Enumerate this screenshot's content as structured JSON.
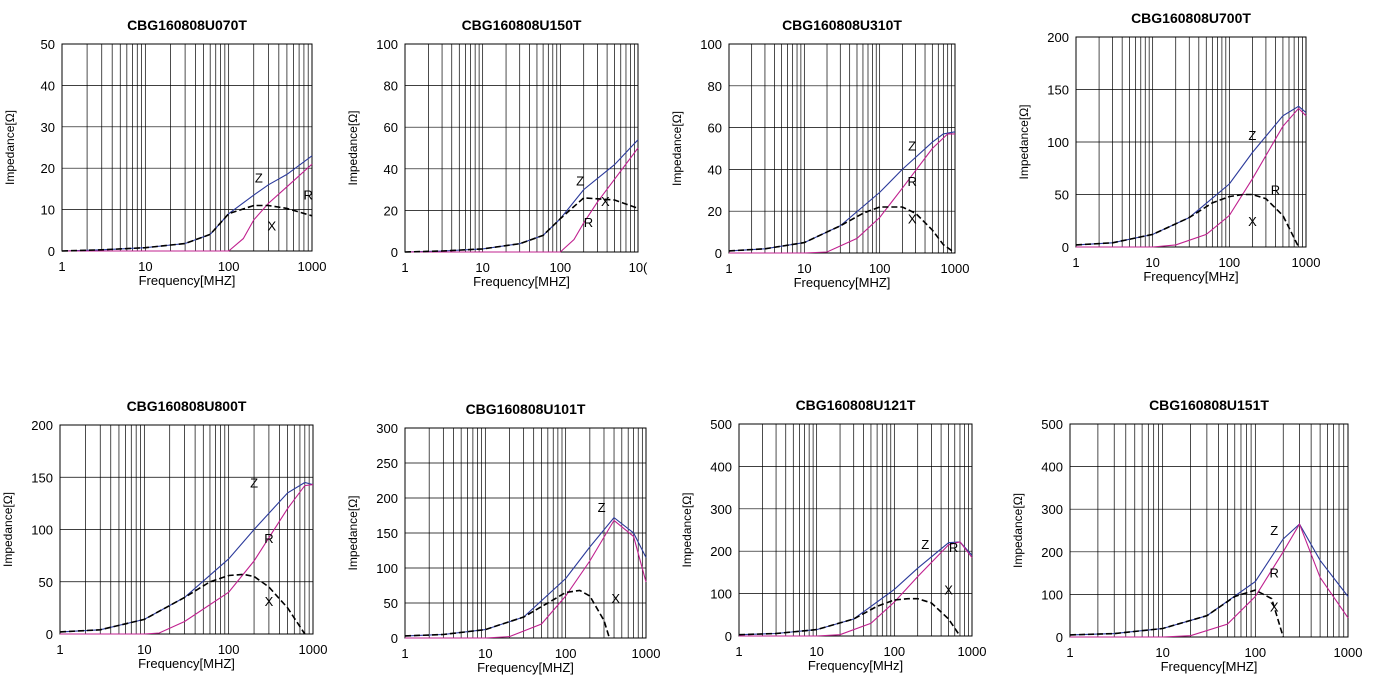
{
  "colors": {
    "Z": "#2b3a9b",
    "R": "#c0208f",
    "X": "#000000",
    "grid": "#000000"
  },
  "chart_data": [
    {
      "type": "line",
      "title": "CBG160808U070T",
      "xlabel": "Frequency[MHZ]",
      "ylabel": "Impedance[Ω]",
      "xscale": "log",
      "xlim": [
        1,
        1000
      ],
      "ylim": [
        0,
        50
      ],
      "yticks": [
        0,
        10,
        20,
        30,
        40,
        50
      ],
      "xticks": [
        {
          "v": 1,
          "l": "1"
        },
        {
          "v": 10,
          "l": "10"
        },
        {
          "v": 100,
          "l": "100"
        },
        {
          "v": 1000,
          "l": "1000"
        }
      ],
      "grid": true,
      "series": [
        {
          "name": "Z",
          "x": [
            1,
            3,
            10,
            30,
            60,
            100,
            200,
            300,
            500,
            1000
          ],
          "y": [
            0,
            0.3,
            0.8,
            1.8,
            4,
            9,
            13.5,
            16,
            18.5,
            23
          ]
        },
        {
          "name": "R",
          "x": [
            1,
            10,
            60,
            100,
            150,
            200,
            300,
            500,
            1000
          ],
          "y": [
            0,
            0,
            0,
            0,
            3,
            7.5,
            11.5,
            15.5,
            21
          ]
        },
        {
          "name": "X",
          "x": [
            1,
            3,
            10,
            30,
            60,
            100,
            200,
            300,
            500,
            1000
          ],
          "y": [
            0,
            0.3,
            0.8,
            1.8,
            4,
            9,
            11,
            11,
            10.3,
            8.5
          ]
        }
      ],
      "annotations": [
        {
          "text": "Z",
          "x": 230,
          "y": 16.5
        },
        {
          "text": "R",
          "x": 900,
          "y": 12.5
        },
        {
          "text": "X",
          "x": 330,
          "y": 5
        }
      ]
    },
    {
      "type": "line",
      "title": "CBG160808U150T",
      "xlabel": "Frequency[MHZ]",
      "ylabel": "Impedance[Ω]",
      "xscale": "log",
      "xlim": [
        1,
        1000
      ],
      "ylim": [
        0,
        100
      ],
      "yticks": [
        0,
        20,
        40,
        60,
        80,
        100
      ],
      "xticks": [
        {
          "v": 1,
          "l": "1"
        },
        {
          "v": 10,
          "l": "10"
        },
        {
          "v": 100,
          "l": "100"
        },
        {
          "v": 1000,
          "l": "10("
        }
      ],
      "grid": true,
      "series": [
        {
          "name": "Z",
          "x": [
            1,
            3,
            10,
            30,
            60,
            100,
            200,
            500,
            1000
          ],
          "y": [
            0,
            0.5,
            1.5,
            4,
            8,
            16,
            30,
            42,
            54
          ]
        },
        {
          "name": "R",
          "x": [
            1,
            10,
            60,
            100,
            150,
            200,
            300,
            500,
            1000
          ],
          "y": [
            0,
            0,
            0,
            0,
            6,
            14,
            24,
            35,
            50
          ]
        },
        {
          "name": "X",
          "x": [
            1,
            3,
            10,
            30,
            60,
            100,
            200,
            500,
            1000
          ],
          "y": [
            0,
            0.5,
            1.5,
            4,
            8,
            16,
            26,
            25,
            21
          ]
        }
      ],
      "annotations": [
        {
          "text": "Z",
          "x": 180,
          "y": 32
        },
        {
          "text": "X",
          "x": 380,
          "y": 22
        },
        {
          "text": "R",
          "x": 230,
          "y": 12
        }
      ]
    },
    {
      "type": "line",
      "title": "CBG160808U310T",
      "xlabel": "Frequency[MHZ]",
      "ylabel": "Impedance[Ω]",
      "xscale": "log",
      "xlim": [
        1,
        1000
      ],
      "ylim": [
        0,
        100
      ],
      "yticks": [
        0,
        20,
        40,
        60,
        80,
        100
      ],
      "xticks": [
        {
          "v": 1,
          "l": "1"
        },
        {
          "v": 10,
          "l": "10"
        },
        {
          "v": 100,
          "l": "100"
        },
        {
          "v": 1000,
          "l": "1000"
        }
      ],
      "grid": true,
      "series": [
        {
          "name": "Z",
          "x": [
            1,
            3,
            10,
            30,
            100,
            200,
            500,
            700,
            1000
          ],
          "y": [
            1,
            2,
            5,
            13,
            29,
            40,
            53,
            57,
            58
          ]
        },
        {
          "name": "R",
          "x": [
            1,
            10,
            20,
            50,
            100,
            200,
            500,
            800,
            1000
          ],
          "y": [
            0,
            0,
            0.5,
            7,
            17,
            31,
            50,
            57,
            57
          ]
        },
        {
          "name": "X",
          "x": [
            1,
            3,
            10,
            30,
            60,
            100,
            200,
            300,
            500,
            700,
            1000
          ],
          "y": [
            1,
            2,
            5,
            13,
            19,
            22,
            22,
            19,
            11,
            4,
            0
          ]
        }
      ],
      "annotations": [
        {
          "text": "Z",
          "x": 270,
          "y": 49
        },
        {
          "text": "R",
          "x": 270,
          "y": 32
        },
        {
          "text": "X",
          "x": 270,
          "y": 14
        }
      ]
    },
    {
      "type": "line",
      "title": "CBG160808U700T",
      "xlabel": "Frequency[MHz]",
      "ylabel": "Impedance[Ω]",
      "xscale": "log",
      "xlim": [
        1,
        1000
      ],
      "ylim": [
        0,
        200
      ],
      "yticks": [
        0,
        50,
        100,
        150,
        200
      ],
      "xticks": [
        {
          "v": 1,
          "l": "1"
        },
        {
          "v": 10,
          "l": "10"
        },
        {
          "v": 100,
          "l": "100"
        },
        {
          "v": 1000,
          "l": "1000"
        }
      ],
      "grid": true,
      "series": [
        {
          "name": "Z",
          "x": [
            1,
            3,
            10,
            30,
            100,
            200,
            500,
            800,
            1000
          ],
          "y": [
            2,
            4,
            12,
            28,
            60,
            90,
            125,
            134,
            128
          ]
        },
        {
          "name": "R",
          "x": [
            1,
            10,
            20,
            50,
            100,
            200,
            500,
            800,
            1000
          ],
          "y": [
            0,
            0,
            2,
            12,
            30,
            65,
            115,
            132,
            125
          ]
        },
        {
          "name": "X",
          "x": [
            1,
            3,
            10,
            30,
            60,
            100,
            150,
            200,
            300,
            500,
            800
          ],
          "y": [
            2,
            4,
            12,
            28,
            42,
            48,
            50,
            50,
            46,
            30,
            0
          ]
        }
      ],
      "annotations": [
        {
          "text": "Z",
          "x": 200,
          "y": 102
        },
        {
          "text": "R",
          "x": 400,
          "y": 50
        },
        {
          "text": "X",
          "x": 200,
          "y": 20
        }
      ]
    },
    {
      "type": "line",
      "title": "CBG160808U800T",
      "xlabel": "Frequency[MHZ]",
      "ylabel": "Impedance[Ω]",
      "xscale": "log",
      "xlim": [
        1,
        1000
      ],
      "ylim": [
        0,
        200
      ],
      "yticks": [
        0,
        50,
        100,
        150,
        200
      ],
      "xticks": [
        {
          "v": 1,
          "l": "1"
        },
        {
          "v": 10,
          "l": "10"
        },
        {
          "v": 100,
          "l": "100"
        },
        {
          "v": 1000,
          "l": "1000"
        }
      ],
      "grid": true,
      "series": [
        {
          "name": "Z",
          "x": [
            1,
            3,
            10,
            30,
            100,
            200,
            500,
            800,
            1000
          ],
          "y": [
            2,
            4,
            14,
            35,
            72,
            100,
            135,
            145,
            143
          ]
        },
        {
          "name": "R",
          "x": [
            1,
            10,
            15,
            30,
            100,
            200,
            500,
            800,
            1000
          ],
          "y": [
            0,
            0,
            1,
            12,
            40,
            70,
            120,
            142,
            143
          ]
        },
        {
          "name": "X",
          "x": [
            1,
            3,
            10,
            30,
            60,
            100,
            150,
            200,
            300,
            500,
            800
          ],
          "y": [
            2,
            4,
            14,
            35,
            50,
            56,
            57,
            55,
            45,
            25,
            0
          ]
        }
      ],
      "annotations": [
        {
          "text": "Z",
          "x": 200,
          "y": 140
        },
        {
          "text": "R",
          "x": 300,
          "y": 87
        },
        {
          "text": "X",
          "x": 300,
          "y": 27
        }
      ]
    },
    {
      "type": "line",
      "title": "CBG160808U101T",
      "xlabel": "Frequency[MHZ]",
      "ylabel": "Impedance[Ω]",
      "xscale": "log",
      "xlim": [
        1,
        1000
      ],
      "ylim": [
        0,
        300
      ],
      "yticks": [
        0,
        50,
        100,
        150,
        200,
        250,
        300
      ],
      "xticks": [
        {
          "v": 1,
          "l": "1"
        },
        {
          "v": 10,
          "l": "10"
        },
        {
          "v": 100,
          "l": "100"
        },
        {
          "v": 1000,
          "l": "1000"
        }
      ],
      "grid": true,
      "series": [
        {
          "name": "Z",
          "x": [
            1,
            3,
            10,
            30,
            100,
            200,
            400,
            700,
            1000
          ],
          "y": [
            3,
            5,
            12,
            30,
            85,
            130,
            172,
            150,
            115
          ]
        },
        {
          "name": "R",
          "x": [
            1,
            10,
            20,
            50,
            100,
            200,
            400,
            700,
            1000
          ],
          "y": [
            0,
            0,
            2,
            20,
            60,
            110,
            168,
            145,
            80
          ]
        },
        {
          "name": "X",
          "x": [
            1,
            3,
            10,
            30,
            60,
            100,
            150,
            200,
            300,
            350
          ],
          "y": [
            3,
            5,
            12,
            30,
            50,
            65,
            68,
            60,
            25,
            0
          ]
        }
      ],
      "annotations": [
        {
          "text": "Z",
          "x": 280,
          "y": 180
        },
        {
          "text": "X",
          "x": 420,
          "y": 50
        }
      ]
    },
    {
      "type": "line",
      "title": "CBG160808U121T",
      "xlabel": "Frequency[MHz]",
      "ylabel": "Impedance[Ω]",
      "xscale": "log",
      "xlim": [
        1,
        1000
      ],
      "ylim": [
        0,
        500
      ],
      "yticks": [
        0,
        100,
        200,
        300,
        400,
        500
      ],
      "xticks": [
        {
          "v": 1,
          "l": "1"
        },
        {
          "v": 10,
          "l": "10"
        },
        {
          "v": 100,
          "l": "100"
        },
        {
          "v": 1000,
          "l": "1000"
        }
      ],
      "grid": true,
      "series": [
        {
          "name": "Z",
          "x": [
            1,
            3,
            10,
            30,
            100,
            200,
            500,
            700,
            1000
          ],
          "y": [
            3,
            6,
            15,
            40,
            110,
            160,
            220,
            222,
            190
          ]
        },
        {
          "name": "R",
          "x": [
            1,
            10,
            20,
            50,
            100,
            200,
            500,
            700,
            1000
          ],
          "y": [
            0,
            0,
            3,
            30,
            80,
            140,
            215,
            222,
            185
          ]
        },
        {
          "name": "X",
          "x": [
            1,
            3,
            10,
            30,
            60,
            100,
            150,
            200,
            300,
            500,
            700
          ],
          "y": [
            3,
            6,
            15,
            40,
            70,
            85,
            88,
            88,
            78,
            40,
            0
          ]
        }
      ],
      "annotations": [
        {
          "text": "Z",
          "x": 250,
          "y": 205
        },
        {
          "text": "R",
          "x": 580,
          "y": 198
        },
        {
          "text": "X",
          "x": 500,
          "y": 98
        }
      ]
    },
    {
      "type": "line",
      "title": "CBG160808U151T",
      "xlabel": "Frequency[MHZ]",
      "ylabel": "Impedance[Ω]",
      "xscale": "log",
      "xlim": [
        1,
        1000
      ],
      "ylim": [
        0,
        500
      ],
      "yticks": [
        0,
        100,
        200,
        300,
        400,
        500
      ],
      "xticks": [
        {
          "v": 1,
          "l": "1"
        },
        {
          "v": 10,
          "l": "10"
        },
        {
          "v": 100,
          "l": "100"
        },
        {
          "v": 1000,
          "l": "1000"
        }
      ],
      "grid": true,
      "series": [
        {
          "name": "Z",
          "x": [
            1,
            3,
            10,
            30,
            100,
            200,
            300,
            500,
            1000
          ],
          "y": [
            5,
            8,
            20,
            50,
            130,
            230,
            265,
            180,
            95
          ]
        },
        {
          "name": "R",
          "x": [
            1,
            10,
            20,
            50,
            100,
            200,
            300,
            500,
            1000
          ],
          "y": [
            0,
            0,
            3,
            30,
            95,
            200,
            265,
            140,
            45
          ]
        },
        {
          "name": "X",
          "x": [
            1,
            3,
            10,
            30,
            60,
            100,
            150,
            200
          ],
          "y": [
            5,
            8,
            20,
            50,
            95,
            110,
            90,
            0
          ]
        }
      ],
      "annotations": [
        {
          "text": "Z",
          "x": 160,
          "y": 240
        },
        {
          "text": "R",
          "x": 160,
          "y": 140
        },
        {
          "text": "X",
          "x": 160,
          "y": 60
        }
      ]
    }
  ]
}
